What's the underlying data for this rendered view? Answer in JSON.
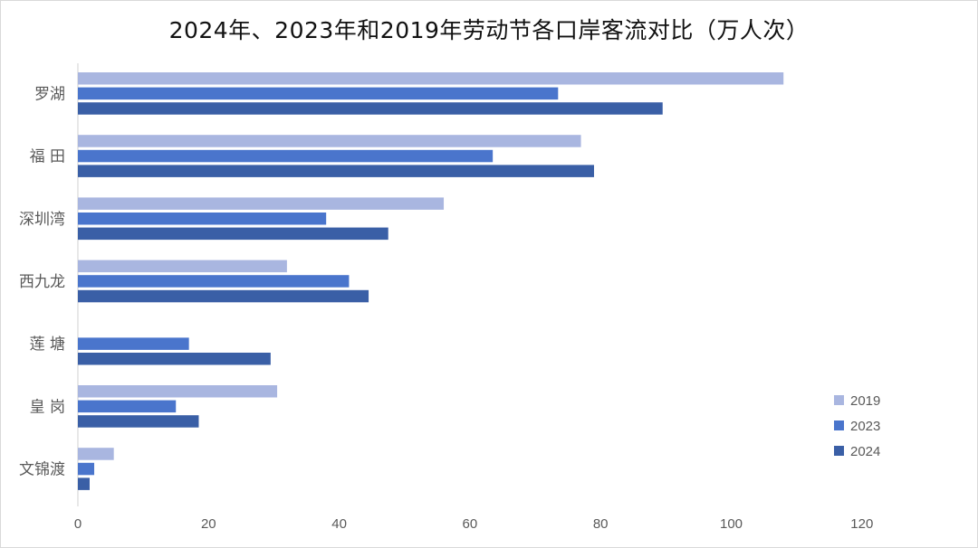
{
  "chart_data": {
    "type": "bar",
    "orientation": "horizontal",
    "title": "2024年、2023年和2019年劳动节各口岸客流对比（万人次）",
    "categories": [
      "罗湖",
      "福 田",
      "深圳湾",
      "西九龙",
      "莲 塘",
      "皇 岗",
      "文锦渡"
    ],
    "series": [
      {
        "name": "2019",
        "color": "#a9b6e0",
        "values": [
          108,
          77,
          56,
          32,
          null,
          30.5,
          5.5
        ]
      },
      {
        "name": "2023",
        "color": "#4a75cc",
        "values": [
          73.5,
          63.5,
          38,
          41.5,
          17,
          15,
          2.5
        ]
      },
      {
        "name": "2024",
        "color": "#3a5fa6",
        "values": [
          89.5,
          79,
          47.5,
          44.5,
          29.5,
          18.5,
          1.8
        ]
      }
    ],
    "xlim": [
      0,
      120
    ],
    "xticks": [
      0,
      20,
      40,
      60,
      80,
      100,
      120
    ],
    "grid": false,
    "legend_position": "bottom-right"
  }
}
